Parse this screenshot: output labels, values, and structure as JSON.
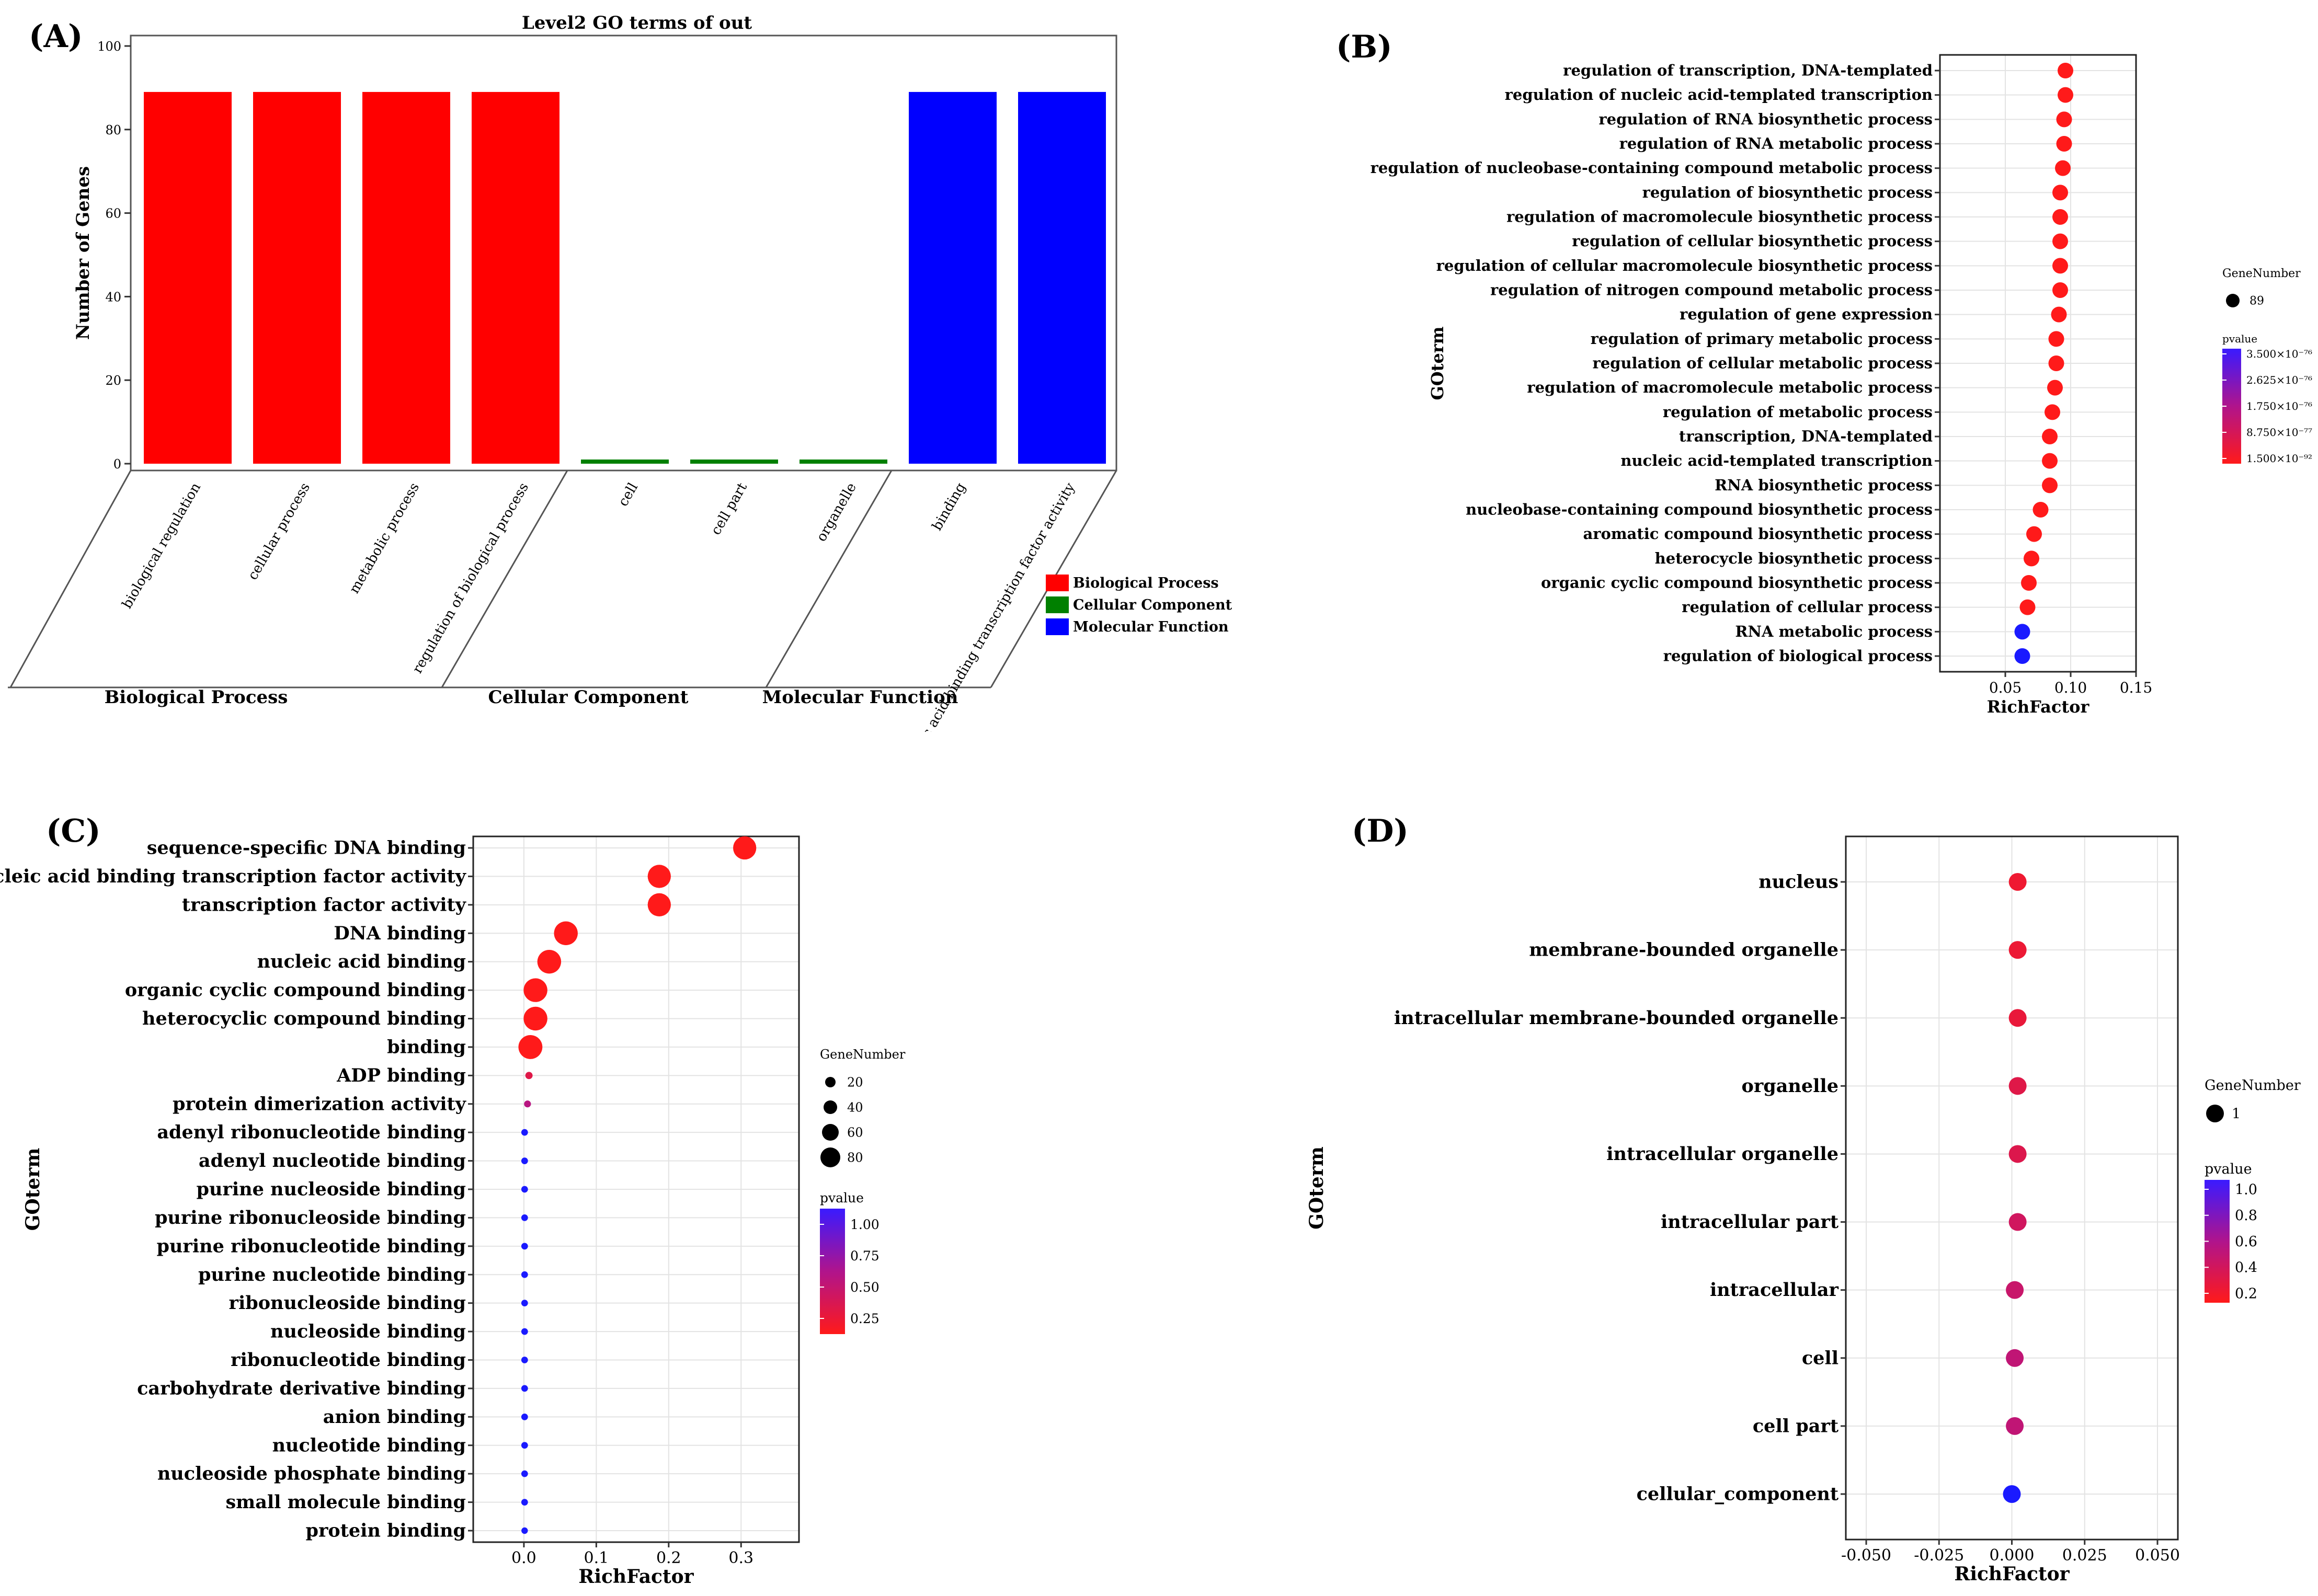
{
  "chart_data": [
    {
      "panel_label": "(A)",
      "type": "bar",
      "title": "Level2 GO terms of out",
      "ylabel": "Number of Genes",
      "ylim": [
        0,
        100
      ],
      "yticks": [
        0,
        20,
        40,
        60,
        80,
        100
      ],
      "categories": [
        "biological regulation",
        "cellular process",
        "metabolic process",
        "regulation of biological process",
        "cell",
        "cell part",
        "organelle",
        "binding",
        "nucleic acid binding transcription factor activity"
      ],
      "values": [
        89,
        89,
        89,
        89,
        1,
        1,
        1,
        89,
        89
      ],
      "groups": [
        "Biological Process",
        "Biological Process",
        "Biological Process",
        "Biological Process",
        "Cellular Component",
        "Cellular Component",
        "Cellular Component",
        "Molecular Function",
        "Molecular Function"
      ],
      "group_labels": [
        "Biological Process",
        "Cellular Component",
        "Molecular Function"
      ],
      "legend": [
        {
          "name": "Biological Process",
          "color": "#ff0000"
        },
        {
          "name": "Cellular Component",
          "color": "#008000"
        },
        {
          "name": "Molecular Function",
          "color": "#0000ff"
        }
      ]
    },
    {
      "panel_label": "(B)",
      "type": "scatter",
      "ylabel": "GOterm",
      "xlabel": "RichFactor",
      "xlim": [
        0.0,
        0.15
      ],
      "xticks": [
        0.05,
        0.1,
        0.15
      ],
      "xtick_labels": [
        "0.05",
        "0.10",
        "0.15"
      ],
      "terms": [
        "regulation of transcription, DNA-templated",
        "regulation of nucleic acid-templated transcription",
        "regulation of RNA biosynthetic process",
        "regulation of RNA metabolic process",
        "regulation of nucleobase-containing compound metabolic process",
        "regulation of biosynthetic process",
        "regulation of macromolecule biosynthetic process",
        "regulation of cellular biosynthetic process",
        "regulation of cellular macromolecule biosynthetic process",
        "regulation of nitrogen compound metabolic process",
        "regulation of gene expression",
        "regulation of primary metabolic process",
        "regulation of cellular metabolic process",
        "regulation of macromolecule metabolic process",
        "regulation of metabolic process",
        "transcription, DNA-templated",
        "nucleic acid-templated transcription",
        "RNA biosynthetic process",
        "nucleobase-containing compound biosynthetic process",
        "aromatic compound biosynthetic process",
        "heterocycle biosynthetic process",
        "organic cyclic compound biosynthetic process",
        "regulation of cellular process",
        "RNA metabolic process",
        "regulation of biological process"
      ],
      "richfactor": [
        0.096,
        0.096,
        0.095,
        0.095,
        0.094,
        0.092,
        0.092,
        0.092,
        0.092,
        0.092,
        0.091,
        0.089,
        0.089,
        0.088,
        0.086,
        0.084,
        0.084,
        0.084,
        0.077,
        0.072,
        0.07,
        0.068,
        0.067,
        0.063,
        0.063
      ],
      "color_level": [
        0,
        0,
        0,
        0,
        0,
        0,
        0,
        0,
        0,
        0,
        0,
        0,
        0,
        0,
        0,
        0,
        0,
        0,
        0,
        0,
        0,
        0,
        0,
        1,
        1
      ],
      "gene_number": [
        89,
        89,
        89,
        89,
        89,
        89,
        89,
        89,
        89,
        89,
        89,
        89,
        89,
        89,
        89,
        89,
        89,
        89,
        89,
        89,
        89,
        89,
        89,
        89,
        89
      ],
      "size_legend_title": "GeneNumber",
      "size_legend_values": [
        "89"
      ],
      "color_legend_title": "pvalue",
      "color_legend_labels": [
        "3.500×10⁻⁷⁶",
        "2.625×10⁻⁷⁶",
        "1.750×10⁻⁷⁶",
        "8.750×10⁻⁷⁷",
        "1.500×10⁻⁹²"
      ]
    },
    {
      "panel_label": "(C)",
      "type": "scatter",
      "ylabel": "GOterm",
      "xlabel": "RichFactor",
      "xlim": [
        -0.07,
        0.38
      ],
      "xticks": [
        0.0,
        0.1,
        0.2,
        0.3
      ],
      "xtick_labels": [
        "0.0",
        "0.1",
        "0.2",
        "0.3"
      ],
      "terms": [
        "sequence-specific DNA binding",
        "nucleic acid binding transcription factor activity",
        "transcription factor activity",
        "DNA binding",
        "nucleic acid binding",
        "organic cyclic compound binding",
        "heterocyclic compound binding",
        "binding",
        "ADP binding",
        "protein dimerization activity",
        "adenyl ribonucleotide binding",
        "adenyl nucleotide binding",
        "purine nucleoside binding",
        "purine ribonucleoside binding",
        "purine ribonucleotide binding",
        "purine nucleotide binding",
        "ribonucleoside binding",
        "nucleoside binding",
        "ribonucleotide binding",
        "carbohydrate derivative binding",
        "anion binding",
        "nucleotide binding",
        "nucleoside phosphate binding",
        "small molecule binding",
        "protein binding"
      ],
      "richfactor": [
        0.305,
        0.187,
        0.187,
        0.058,
        0.035,
        0.016,
        0.016,
        0.009,
        0.007,
        0.005,
        0.001,
        0.001,
        0.001,
        0.001,
        0.001,
        0.001,
        0.001,
        0.001,
        0.001,
        0.001,
        0.001,
        0.001,
        0.001,
        0.001,
        0.001
      ],
      "gene_number": [
        85,
        85,
        85,
        88,
        88,
        88,
        88,
        89,
        5,
        3,
        2,
        2,
        2,
        2,
        2,
        2,
        2,
        2,
        2,
        2,
        2,
        2,
        2,
        2,
        1
      ],
      "pvalue": [
        0.0,
        0.0,
        0.0,
        0.0,
        0.0,
        0.0,
        0.0,
        0.0,
        0.2,
        0.45,
        1.0,
        1.0,
        1.0,
        1.0,
        1.0,
        1.0,
        1.0,
        1.0,
        1.0,
        1.0,
        1.0,
        1.0,
        1.0,
        1.0,
        1.0
      ],
      "size_legend_title": "GeneNumber",
      "size_legend_values": [
        "20",
        "40",
        "60",
        "80"
      ],
      "color_legend_title": "pvalue",
      "color_legend_labels": [
        "1.00",
        "0.75",
        "0.50",
        "0.25"
      ]
    },
    {
      "panel_label": "(D)",
      "type": "scatter",
      "ylabel": "GOterm",
      "xlabel": "RichFactor",
      "xlim": [
        -0.057,
        0.057
      ],
      "xticks": [
        -0.05,
        -0.025,
        0.0,
        0.025,
        0.05
      ],
      "xtick_labels": [
        "-0.050",
        "-0.025",
        "0.000",
        "0.025",
        "0.050"
      ],
      "terms": [
        "nucleus",
        "membrane-bounded organelle",
        "intracellular membrane-bounded organelle",
        "organelle",
        "intracellular organelle",
        "intracellular part",
        "intracellular",
        "cell",
        "cell part",
        "cellular_component"
      ],
      "richfactor": [
        0.002,
        0.002,
        0.002,
        0.002,
        0.002,
        0.002,
        0.001,
        0.001,
        0.001,
        0.0
      ],
      "gene_number": [
        1,
        1,
        1,
        1,
        1,
        1,
        1,
        1,
        1,
        1
      ],
      "pvalue": [
        0.1,
        0.12,
        0.14,
        0.2,
        0.22,
        0.3,
        0.35,
        0.4,
        0.4,
        1.0
      ],
      "size_legend_title": "GeneNumber",
      "size_legend_values": [
        "1"
      ],
      "color_legend_title": "pvalue",
      "color_legend_labels": [
        "1.0",
        "0.8",
        "0.6",
        "0.4",
        "0.2"
      ]
    }
  ]
}
